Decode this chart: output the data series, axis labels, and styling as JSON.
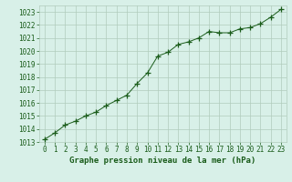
{
  "x": [
    0,
    1,
    2,
    3,
    4,
    5,
    6,
    7,
    8,
    9,
    10,
    11,
    12,
    13,
    14,
    15,
    16,
    17,
    18,
    19,
    20,
    21,
    22,
    23
  ],
  "y": [
    1013.2,
    1013.7,
    1014.3,
    1014.6,
    1015.0,
    1015.3,
    1015.8,
    1016.2,
    1016.6,
    1017.5,
    1018.3,
    1019.6,
    1019.9,
    1020.5,
    1020.7,
    1021.0,
    1021.5,
    1021.4,
    1021.4,
    1021.7,
    1021.8,
    1022.1,
    1022.6,
    1023.2
  ],
  "line_color": "#1a5c1a",
  "marker": "+",
  "marker_size": 4,
  "marker_color": "#1a5c1a",
  "bg_color": "#d8f0e8",
  "grid_color": "#b0ccbc",
  "title": "Graphe pression niveau de la mer (hPa)",
  "ylim": [
    1013,
    1023.5
  ],
  "xlim": [
    -0.5,
    23.5
  ],
  "yticks": [
    1013,
    1014,
    1015,
    1016,
    1017,
    1018,
    1019,
    1020,
    1021,
    1022,
    1023
  ],
  "xticks": [
    0,
    1,
    2,
    3,
    4,
    5,
    6,
    7,
    8,
    9,
    10,
    11,
    12,
    13,
    14,
    15,
    16,
    17,
    18,
    19,
    20,
    21,
    22,
    23
  ],
  "tick_fontsize": 5.5,
  "title_fontsize": 6.5,
  "linewidth": 0.7
}
